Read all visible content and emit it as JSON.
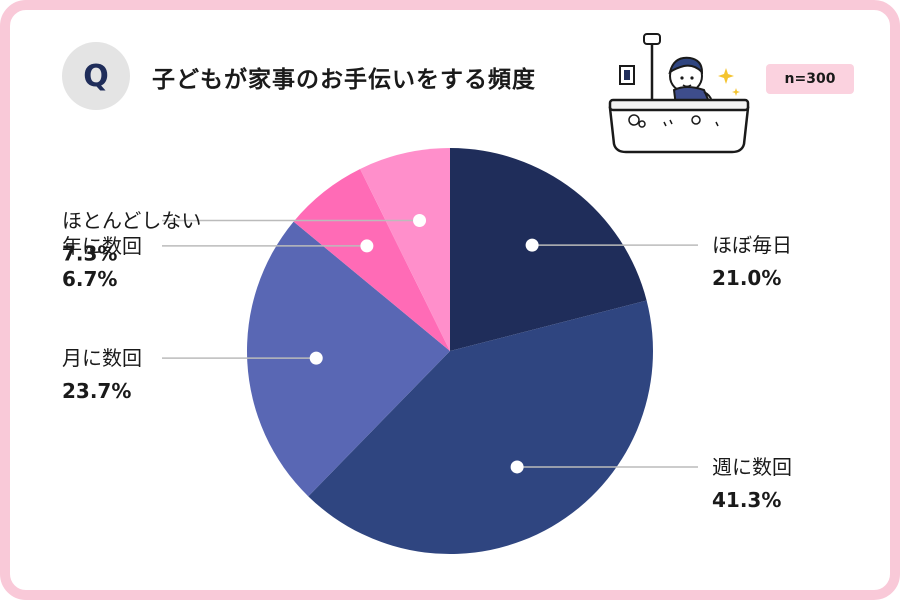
{
  "header": {
    "q_label": "Q",
    "title": "子どもが家事のお手伝いをする頻度",
    "sample_size": "n=300"
  },
  "colors": {
    "frame": "#f9c9d8",
    "badge_bg": "#fbd2df"
  },
  "chart_data": {
    "type": "pie",
    "title": "子どもが家事のお手伝いをする頻度",
    "slices": [
      {
        "label": "ほぼ毎日",
        "value": 21.0,
        "display": "21.0%",
        "color": "#1f2d5a",
        "side": "right"
      },
      {
        "label": "週に数回",
        "value": 41.3,
        "display": "41.3%",
        "color": "#2f4580",
        "side": "right"
      },
      {
        "label": "月に数回",
        "value": 23.7,
        "display": "23.7%",
        "color": "#5967b4",
        "side": "left"
      },
      {
        "label": "年に数回",
        "value": 6.7,
        "display": "6.7%",
        "color": "#ff6bb6",
        "side": "left"
      },
      {
        "label": "ほとんどしない",
        "value": 7.3,
        "display": "7.3%",
        "color": "#ff8fcb",
        "side": "left"
      }
    ]
  }
}
